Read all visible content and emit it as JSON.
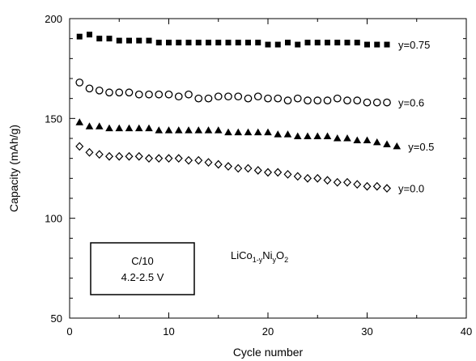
{
  "chart_data": {
    "type": "scatter",
    "title": "",
    "xlabel": "Cycle number",
    "ylabel": "Capacity (mAh/g)",
    "xlim": [
      0,
      40
    ],
    "ylim": [
      50,
      200
    ],
    "x_ticks": [
      "0",
      "10",
      "20",
      "30",
      "40"
    ],
    "y_ticks": [
      "50",
      "100",
      "150",
      "200"
    ],
    "grid": false,
    "legend": "none",
    "formula": {
      "base": "LiCo",
      "sub1": "1-y",
      "mid": "Ni",
      "sub2": "y",
      "end": "O",
      "sub3": "2"
    },
    "condition_box": [
      "C/10",
      "4.2-2.5 V"
    ],
    "series": [
      {
        "name": "y=0.75",
        "marker": "filled-square",
        "x": [
          1,
          2,
          3,
          4,
          5,
          6,
          7,
          8,
          9,
          10,
          11,
          12,
          13,
          14,
          15,
          16,
          17,
          18,
          19,
          20,
          21,
          22,
          23,
          24,
          25,
          26,
          27,
          28,
          29,
          30,
          31,
          32
        ],
        "values": [
          191,
          192,
          190,
          190,
          189,
          189,
          189,
          189,
          188,
          188,
          188,
          188,
          188,
          188,
          188,
          188,
          188,
          188,
          188,
          187,
          187,
          188,
          187,
          188,
          188,
          188,
          188,
          188,
          188,
          187,
          187,
          187
        ]
      },
      {
        "name": "y=0.6",
        "marker": "open-circle",
        "x": [
          1,
          2,
          3,
          4,
          5,
          6,
          7,
          8,
          9,
          10,
          11,
          12,
          13,
          14,
          15,
          16,
          17,
          18,
          19,
          20,
          21,
          22,
          23,
          24,
          25,
          26,
          27,
          28,
          29,
          30,
          31,
          32
        ],
        "values": [
          168,
          165,
          164,
          163,
          163,
          163,
          162,
          162,
          162,
          162,
          161,
          162,
          160,
          160,
          161,
          161,
          161,
          160,
          161,
          160,
          160,
          159,
          160,
          159,
          159,
          159,
          160,
          159,
          159,
          158,
          158,
          158
        ]
      },
      {
        "name": "y=0.5",
        "marker": "filled-triangle",
        "x": [
          1,
          2,
          3,
          4,
          5,
          6,
          7,
          8,
          9,
          10,
          11,
          12,
          13,
          14,
          15,
          16,
          17,
          18,
          19,
          20,
          21,
          22,
          23,
          24,
          25,
          26,
          27,
          28,
          29,
          30,
          31,
          32,
          33
        ],
        "values": [
          148,
          146,
          146,
          145,
          145,
          145,
          145,
          145,
          144,
          144,
          144,
          144,
          144,
          144,
          144,
          143,
          143,
          143,
          143,
          143,
          142,
          142,
          141,
          141,
          141,
          141,
          140,
          140,
          139,
          139,
          138,
          137,
          136
        ]
      },
      {
        "name": "y=0.0",
        "marker": "open-diamond",
        "x": [
          1,
          2,
          3,
          4,
          5,
          6,
          7,
          8,
          9,
          10,
          11,
          12,
          13,
          14,
          15,
          16,
          17,
          18,
          19,
          20,
          21,
          22,
          23,
          24,
          25,
          26,
          27,
          28,
          29,
          30,
          31,
          32
        ],
        "values": [
          136,
          133,
          132,
          131,
          131,
          131,
          131,
          130,
          130,
          130,
          130,
          129,
          129,
          128,
          127,
          126,
          125,
          125,
          124,
          123,
          123,
          122,
          121,
          120,
          120,
          119,
          118,
          118,
          117,
          116,
          116,
          115
        ]
      }
    ]
  }
}
